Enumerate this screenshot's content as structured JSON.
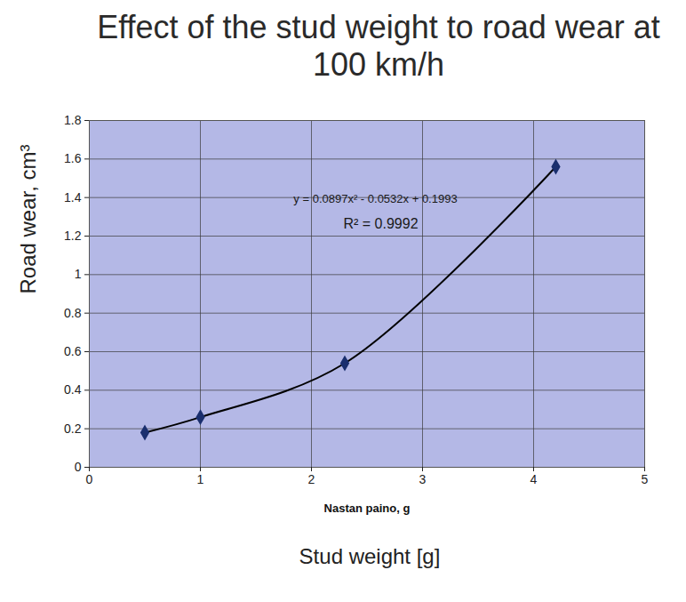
{
  "chart_data": {
    "type": "line",
    "title": "Effect of the stud weight to road wear at 100 km/h",
    "xlabel": "Nastan paino, g",
    "ylabel": "Road wear, cm³",
    "caption": "Stud weight [g]",
    "annotations": [
      "y = 0.0897x² - 0.0532x + 0.1993",
      "R² = 0.9992"
    ],
    "x": [
      0.5,
      1,
      2.3,
      4.2
    ],
    "series": [
      {
        "name": null,
        "color": "#1a2f6e",
        "marker": "diamond",
        "line_style": "solid",
        "values": [
          0.18,
          0.26,
          0.54,
          1.56
        ]
      }
    ],
    "xlim": [
      0,
      5
    ],
    "xticks": [
      0,
      1,
      2,
      3,
      4,
      5
    ],
    "ylim": [
      0,
      1.8
    ],
    "yticks": [
      0,
      0.2,
      0.4,
      0.6,
      0.8,
      1,
      1.2,
      1.4,
      1.6,
      1.8
    ],
    "grid": true
  }
}
